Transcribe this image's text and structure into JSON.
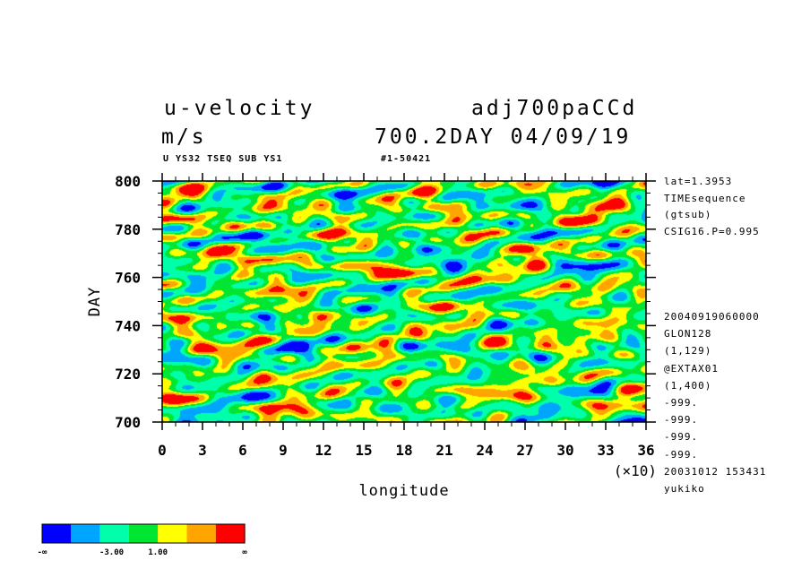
{
  "header": {
    "variable": "u-velocity",
    "units": "m/s",
    "experiment": "adj700paCCd",
    "date_line": "700.2DAY 04/09/19",
    "subtitle_left": "U YS32 TSEQ SUB YS1",
    "subtitle_right": "#1-50421"
  },
  "side_meta": {
    "top": [
      "lat=1.3953",
      "TIMEsequence",
      "(gtsub)",
      "CSIG16.P=0.995"
    ],
    "bottom": [
      "20040919060000",
      "GLON128",
      "(1,129)",
      "@EXTAX01",
      "(1,400)",
      "-999.",
      "-999.",
      "-999.",
      "-999.",
      "20031012 153431",
      "yukiko"
    ]
  },
  "colors": {
    "levels": [
      "#0000ff",
      "#00a5ff",
      "#00ffaa",
      "#00e632",
      "#ffff00",
      "#ffa500",
      "#ff0000"
    ]
  },
  "colorbar": {
    "labels": [
      "-∞",
      "-3.00",
      "1.00",
      "∞"
    ]
  },
  "chart_data": {
    "type": "heatmap",
    "title": "u-velocity",
    "xlabel": "longitude",
    "ylabel": "DAY",
    "x_multiplier": "(×10)",
    "xlim": [
      0,
      36
    ],
    "ylim": [
      700,
      800
    ],
    "x_ticks": [
      "0",
      "3",
      "6",
      "9",
      "12",
      "15",
      "18",
      "21",
      "24",
      "27",
      "30",
      "33",
      "36"
    ],
    "y_ticks": [
      "700",
      "720",
      "740",
      "760",
      "780",
      "800"
    ],
    "contour_levels": [
      "-∞",
      "-3.00",
      "1.00",
      "∞"
    ],
    "grid": false
  }
}
